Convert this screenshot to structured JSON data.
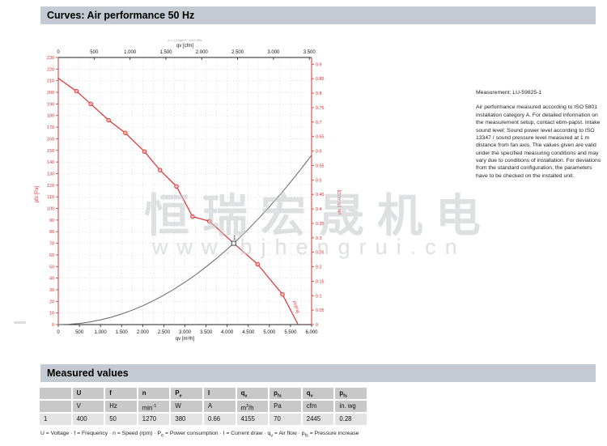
{
  "header": {
    "title": "Curves: Air performance 50 Hz"
  },
  "watermark": {
    "text": "恒瑞宏晟机电",
    "url": "www.bjhengrui.cn"
  },
  "measurement_note": {
    "title": "Measurement: LU-59825-1",
    "body": "Air performance measured according to ISO 5801 installation category A. For detailed information on the measurement setup, contact ebm-papst. Intake sound level: Sound power level according to ISO 13347 / sound pressure level measured at 1 m distance from fan axis. The values given are valid under the specified measuring conditions and may vary due to conditions of installation. For deviations from the standard configuration, the parameters have to be checked on the installed unit."
  },
  "chart_data": {
    "type": "line",
    "title": "Air performance 50 Hz",
    "grid": "dotted",
    "x_bottom": {
      "label": "qv [m³/h]",
      "range": [
        0,
        6000
      ],
      "tick_step": 500,
      "tick_labels": [
        "0",
        "500",
        "1.000",
        "1.500",
        "2.000",
        "2.500",
        "3.000",
        "3.500",
        "4.000",
        "4.500",
        "5.000",
        "5.500",
        "6.000"
      ]
    },
    "x_top": {
      "label": "qv [cfm]",
      "note": "ρ = 1,2 kg/m³ · 1013 hPa",
      "range": [
        0,
        3500
      ],
      "tick_step": 500,
      "tick_labels": [
        "0",
        "500",
        "1.000",
        "1.500",
        "2.000",
        "2.500",
        "3.000",
        "3.500"
      ],
      "m3h_per_cfm": 1.699
    },
    "y_left": {
      "label": "pfs [Pa]",
      "range": [
        0,
        230
      ],
      "tick_step": 10
    },
    "y_right": {
      "label": "pfs [IN H2O]",
      "range": [
        0,
        0.9
      ],
      "tick_step": 0.05,
      "pa_per_unit": 249.089,
      "tick_labels": [
        "0",
        "0.05",
        "0.1",
        "0.15",
        "0.2",
        "0.25",
        "0.3",
        "0.35",
        "0.4",
        "0.45",
        "0.5",
        "0.55",
        "0.6",
        "0.65",
        "0.7",
        "0.75",
        "0.8",
        "0.85",
        "0.9"
      ]
    },
    "series": [
      {
        "name": "air-performance-curve",
        "color": "#e03030",
        "points": [
          [
            0,
            212
          ],
          [
            430,
            201
          ],
          [
            770,
            190
          ],
          [
            1190,
            176
          ],
          [
            1590,
            165
          ],
          [
            2040,
            149
          ],
          [
            2410,
            133
          ],
          [
            2800,
            119
          ],
          [
            3180,
            93
          ],
          [
            3580,
            89
          ],
          [
            4155,
            70
          ],
          [
            4720,
            52
          ],
          [
            5310,
            26
          ],
          [
            5680,
            0
          ]
        ],
        "marker_points": [
          [
            430,
            201
          ],
          [
            770,
            190
          ],
          [
            1190,
            176
          ],
          [
            1590,
            165
          ],
          [
            2040,
            149
          ],
          [
            2410,
            133
          ],
          [
            2800,
            119
          ],
          [
            3180,
            93
          ],
          [
            3580,
            89
          ],
          [
            4720,
            52
          ],
          [
            5310,
            26
          ]
        ],
        "curve_label": {
          "text": "pfs[Pa]",
          "qv": 5560,
          "p": 20,
          "angle": 72
        }
      },
      {
        "name": "system-resistance-curve",
        "color": "#666",
        "points": [
          [
            0,
            0
          ],
          [
            250,
            0.3
          ],
          [
            500,
            1.0
          ],
          [
            750,
            2.3
          ],
          [
            1000,
            4.1
          ],
          [
            1250,
            6.3
          ],
          [
            1500,
            9.1
          ],
          [
            1750,
            12.4
          ],
          [
            2000,
            16.2
          ],
          [
            2250,
            20.5
          ],
          [
            2500,
            25.3
          ],
          [
            2750,
            30.7
          ],
          [
            3000,
            36.5
          ],
          [
            3250,
            42.8
          ],
          [
            3500,
            49.7
          ],
          [
            3750,
            57.0
          ],
          [
            4000,
            64.9
          ],
          [
            4250,
            73.2
          ],
          [
            4500,
            82.1
          ],
          [
            4750,
            91.5
          ],
          [
            5000,
            101.4
          ],
          [
            5250,
            111.7
          ],
          [
            5500,
            122.6
          ],
          [
            5750,
            134.0
          ],
          [
            6000,
            145.9
          ]
        ]
      }
    ],
    "operating_point": {
      "qv": 4155,
      "pfs": 70,
      "label": "1"
    }
  },
  "measured_values": {
    "section_title": "Measured values",
    "columns": [
      {
        "h": [
          ""
        ],
        "u": [
          ""
        ]
      },
      {
        "h": [
          "U"
        ],
        "u": [
          "V"
        ]
      },
      {
        "h": [
          "f"
        ],
        "u": [
          "Hz"
        ]
      },
      {
        "h": [
          "n"
        ],
        "u": [
          "min",
          {
            "sup": "-1"
          }
        ]
      },
      {
        "h": [
          "P",
          {
            "sub": "e"
          }
        ],
        "u": [
          "W"
        ]
      },
      {
        "h": [
          "I"
        ],
        "u": [
          "A"
        ]
      },
      {
        "h": [
          "q",
          {
            "sub": "v"
          }
        ],
        "u": [
          "m",
          {
            "sup": "3"
          },
          "/h"
        ]
      },
      {
        "h": [
          "p",
          {
            "sub": "fs"
          }
        ],
        "u": [
          "Pa"
        ]
      },
      {
        "h": [
          "q",
          {
            "sub": "v"
          }
        ],
        "u": [
          "cfm"
        ]
      },
      {
        "h": [
          "p",
          {
            "sub": "fs"
          }
        ],
        "u": [
          "in. wg"
        ]
      }
    ],
    "rows": [
      [
        "1",
        "400",
        "50",
        "1270",
        "380",
        "0.66",
        "4155",
        "70",
        "2445",
        "0.28"
      ]
    ],
    "legend": [
      "U = Voltage · f = Frequency · n = Speed (rpm) · P",
      {
        "sub": "e"
      },
      " = Power consumption · I = Current draw · q",
      {
        "sub": "v"
      },
      " = Air flow · p",
      {
        "sub": "fs"
      },
      " = Pressure increase"
    ]
  }
}
